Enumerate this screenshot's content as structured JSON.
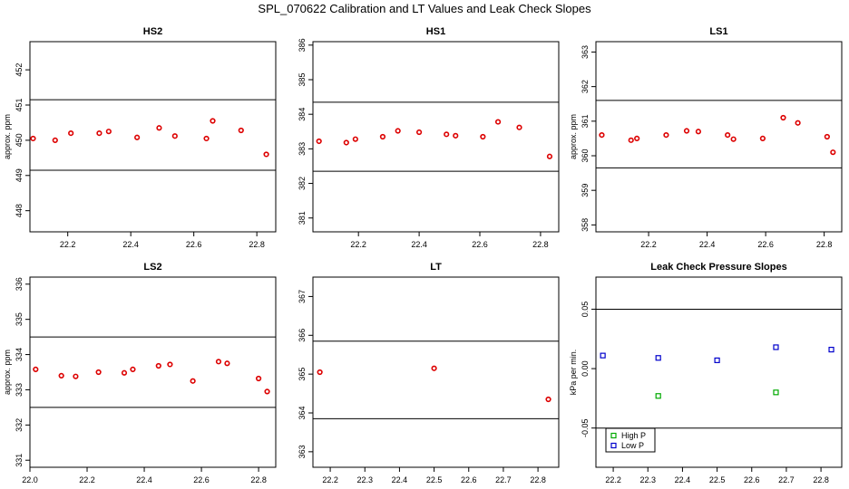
{
  "figure": {
    "title": "SPL_070622  Calibration and LT Values and Leak Check Slopes"
  },
  "colors": {
    "cal_points": "#dd0000",
    "high_p": "#00aa00",
    "low_p": "#0000cc",
    "axis": "#000000"
  },
  "chart_data": [
    {
      "type": "scatter",
      "title": "HS2",
      "ylabel": "approx. ppm",
      "xlabel": "",
      "xlim": [
        22.08,
        22.86
      ],
      "ylim": [
        447.4,
        452.8
      ],
      "xticks": [
        22.2,
        22.4,
        22.6,
        22.8
      ],
      "yticks": [
        448,
        449,
        450,
        451,
        452
      ],
      "hlines": [
        451.15,
        449.15
      ],
      "x": [
        22.09,
        22.16,
        22.21,
        22.3,
        22.33,
        22.42,
        22.49,
        22.54,
        22.64,
        22.66,
        22.75,
        22.83
      ],
      "y": [
        450.05,
        450.0,
        450.2,
        450.2,
        450.25,
        450.08,
        450.35,
        450.12,
        450.05,
        450.55,
        450.28,
        449.6
      ]
    },
    {
      "type": "scatter",
      "title": "HS1",
      "ylabel": "",
      "xlabel": "",
      "xlim": [
        22.05,
        22.86
      ],
      "ylim": [
        380.6,
        386.1
      ],
      "xticks": [
        22.2,
        22.4,
        22.6,
        22.8
      ],
      "yticks": [
        381,
        382,
        383,
        384,
        385,
        386
      ],
      "hlines": [
        384.35,
        382.35
      ],
      "x": [
        22.07,
        22.16,
        22.19,
        22.28,
        22.33,
        22.4,
        22.49,
        22.52,
        22.61,
        22.66,
        22.73,
        22.83
      ],
      "y": [
        383.22,
        383.18,
        383.28,
        383.35,
        383.52,
        383.48,
        383.42,
        383.38,
        383.35,
        383.78,
        383.62,
        382.78
      ]
    },
    {
      "type": "scatter",
      "title": "LS1",
      "ylabel": "approx. ppm",
      "xlabel": "",
      "xlim": [
        22.02,
        22.86
      ],
      "ylim": [
        357.8,
        363.3
      ],
      "xticks": [
        22.2,
        22.4,
        22.6,
        22.8
      ],
      "yticks": [
        358,
        359,
        360,
        361,
        362,
        363
      ],
      "hlines": [
        361.6,
        359.65
      ],
      "x": [
        22.04,
        22.14,
        22.16,
        22.26,
        22.33,
        22.37,
        22.47,
        22.49,
        22.59,
        22.66,
        22.71,
        22.81,
        22.83
      ],
      "y": [
        360.6,
        360.45,
        360.5,
        360.6,
        360.72,
        360.7,
        360.6,
        360.48,
        360.5,
        361.1,
        360.95,
        360.55,
        360.1
      ]
    },
    {
      "type": "scatter",
      "title": "LS2",
      "ylabel": "approx. ppm",
      "xlabel": "",
      "xlim": [
        22.0,
        22.86
      ],
      "ylim": [
        330.8,
        336.2
      ],
      "xticks": [
        22.0,
        22.2,
        22.4,
        22.6,
        22.8
      ],
      "yticks": [
        331,
        332,
        333,
        334,
        335,
        336
      ],
      "hlines": [
        334.5,
        332.5
      ],
      "x": [
        22.02,
        22.11,
        22.16,
        22.24,
        22.33,
        22.36,
        22.45,
        22.49,
        22.57,
        22.66,
        22.69,
        22.8,
        22.83
      ],
      "y": [
        333.58,
        333.4,
        333.38,
        333.5,
        333.48,
        333.58,
        333.68,
        333.72,
        333.25,
        333.8,
        333.75,
        333.32,
        332.95
      ]
    },
    {
      "type": "scatter",
      "title": "LT",
      "ylabel": "",
      "xlabel": "",
      "xlim": [
        22.15,
        22.86
      ],
      "ylim": [
        362.6,
        367.5
      ],
      "xticks": [
        22.2,
        22.3,
        22.4,
        22.5,
        22.6,
        22.7,
        22.8
      ],
      "yticks": [
        363,
        364,
        365,
        366,
        367
      ],
      "hlines": [
        365.85,
        363.85
      ],
      "x": [
        22.17,
        22.5,
        22.83
      ],
      "y": [
        365.05,
        365.15,
        364.35
      ]
    },
    {
      "type": "scatter",
      "title": "Leak Check Pressure Slopes",
      "ylabel": "kPa per min.",
      "xlabel": "",
      "xlim": [
        22.15,
        22.86
      ],
      "ylim": [
        -0.083,
        0.077
      ],
      "xticks": [
        22.2,
        22.3,
        22.4,
        22.5,
        22.6,
        22.7,
        22.8
      ],
      "yticks": [
        -0.05,
        0.0,
        0.05
      ],
      "hlines": [
        0.05,
        -0.05
      ],
      "series": [
        {
          "name": "High P",
          "x": [
            22.33,
            22.67
          ],
          "y": [
            -0.023,
            -0.02
          ]
        },
        {
          "name": "Low P",
          "x": [
            22.17,
            22.33,
            22.5,
            22.67,
            22.83
          ],
          "y": [
            0.011,
            0.009,
            0.007,
            0.018,
            0.016
          ]
        }
      ],
      "legend": "bottom-left"
    }
  ]
}
